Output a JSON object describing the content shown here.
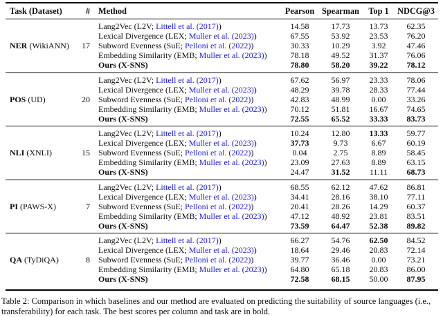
{
  "table": {
    "headers": {
      "task": "Task (Dataset)",
      "count": "#",
      "method": "Method",
      "metrics": [
        "Pearson",
        "Spearman",
        "Top 1",
        "NDCG@3"
      ]
    },
    "groups": [
      {
        "task_abbr": "NER",
        "task_dataset": "(WikiANN)",
        "count": "17",
        "rows": [
          {
            "method_prefix": "Lang2Vec (L2V; ",
            "citation": "Littell et al. (2017)",
            "method_suffix": ")",
            "bold_method": false,
            "values": [
              "14.58",
              "17.73",
              "13.73",
              "62.35"
            ],
            "bold": [
              false,
              false,
              false,
              false
            ]
          },
          {
            "method_prefix": "Lexical Divergence (LEX; ",
            "citation": "Muller et al. (2023)",
            "method_suffix": ")",
            "bold_method": false,
            "values": [
              "67.55",
              "53.92",
              "23.53",
              "76.20"
            ],
            "bold": [
              false,
              false,
              false,
              false
            ]
          },
          {
            "method_prefix": "Subword Evenness (SuE; ",
            "citation": "Pelloni et al. (2022)",
            "method_suffix": ")",
            "bold_method": false,
            "values": [
              "30.33",
              "10.29",
              "3.92",
              "47.46"
            ],
            "bold": [
              false,
              false,
              false,
              false
            ]
          },
          {
            "method_prefix": "Embedding Similarity (EMB; ",
            "citation": "Muller et al. (2023)",
            "method_suffix": ")",
            "bold_method": false,
            "values": [
              "78.18",
              "49.52",
              "31.37",
              "76.06"
            ],
            "bold": [
              false,
              false,
              false,
              false
            ]
          },
          {
            "method_prefix": "Ours (X-SNS)",
            "citation": "",
            "method_suffix": "",
            "bold_method": true,
            "values": [
              "78.80",
              "58.20",
              "39.22",
              "78.12"
            ],
            "bold": [
              true,
              true,
              true,
              true
            ]
          }
        ]
      },
      {
        "task_abbr": "POS",
        "task_dataset": "(UD)",
        "count": "20",
        "rows": [
          {
            "method_prefix": "Lang2Vec (L2V; ",
            "citation": "Littell et al. (2017)",
            "method_suffix": ")",
            "bold_method": false,
            "values": [
              "67.62",
              "56.97",
              "23.33",
              "78.06"
            ],
            "bold": [
              false,
              false,
              false,
              false
            ]
          },
          {
            "method_prefix": "Lexical Divergence (LEX; ",
            "citation": "Muller et al. (2023)",
            "method_suffix": ")",
            "bold_method": false,
            "values": [
              "48.29",
              "39.78",
              "28.33",
              "77.44"
            ],
            "bold": [
              false,
              false,
              false,
              false
            ]
          },
          {
            "method_prefix": "Subword Evenness (SuE; ",
            "citation": "Pelloni et al. (2022)",
            "method_suffix": ")",
            "bold_method": false,
            "values": [
              "42.83",
              "48.99",
              "0.00",
              "33.26"
            ],
            "bold": [
              false,
              false,
              false,
              false
            ]
          },
          {
            "method_prefix": "Embedding Similarity (EMB; ",
            "citation": "Muller et al. (2023)",
            "method_suffix": ")",
            "bold_method": false,
            "values": [
              "70.12",
              "51.81",
              "16.67",
              "74.65"
            ],
            "bold": [
              false,
              false,
              false,
              false
            ]
          },
          {
            "method_prefix": "Ours (X-SNS)",
            "citation": "",
            "method_suffix": "",
            "bold_method": true,
            "values": [
              "72.55",
              "65.52",
              "33.33",
              "83.73"
            ],
            "bold": [
              true,
              true,
              true,
              true
            ]
          }
        ]
      },
      {
        "task_abbr": "NLI",
        "task_dataset": "(XNLI)",
        "count": "15",
        "rows": [
          {
            "method_prefix": "Lang2Vec (L2V; ",
            "citation": "Littell et al. (2017)",
            "method_suffix": ")",
            "bold_method": false,
            "values": [
              "10.24",
              "12.80",
              "13.33",
              "59.77"
            ],
            "bold": [
              false,
              false,
              true,
              false
            ]
          },
          {
            "method_prefix": "Lexical Divergence (LEX; ",
            "citation": "Muller et al. (2023)",
            "method_suffix": ")",
            "bold_method": false,
            "values": [
              "37.73",
              "9.73",
              "6.67",
              "60.19"
            ],
            "bold": [
              true,
              false,
              false,
              false
            ]
          },
          {
            "method_prefix": "Subword Evenness (SuE; ",
            "citation": "Pelloni et al. (2022)",
            "method_suffix": ")",
            "bold_method": false,
            "values": [
              "0.04",
              "2.75",
              "8.89",
              "58.45"
            ],
            "bold": [
              false,
              false,
              false,
              false
            ]
          },
          {
            "method_prefix": "Embedding Similarity (EMB; ",
            "citation": "Muller et al. (2023)",
            "method_suffix": ")",
            "bold_method": false,
            "values": [
              "23.09",
              "27.63",
              "8.89",
              "63.15"
            ],
            "bold": [
              false,
              false,
              false,
              false
            ]
          },
          {
            "method_prefix": "Ours (X-SNS)",
            "citation": "",
            "method_suffix": "",
            "bold_method": true,
            "values": [
              "24.47",
              "31.52",
              "11.11",
              "68.73"
            ],
            "bold": [
              false,
              true,
              false,
              true
            ]
          }
        ]
      },
      {
        "task_abbr": "PI",
        "task_dataset": "(PAWS-X)",
        "count": "7",
        "rows": [
          {
            "method_prefix": "Lang2Vec (L2V; ",
            "citation": "Littell et al. (2017)",
            "method_suffix": ")",
            "bold_method": false,
            "values": [
              "68.55",
              "62.12",
              "47.62",
              "86.81"
            ],
            "bold": [
              false,
              false,
              false,
              false
            ]
          },
          {
            "method_prefix": "Lexical Divergence (LEX; ",
            "citation": "Muller et al. (2023)",
            "method_suffix": ")",
            "bold_method": false,
            "values": [
              "34.41",
              "28.16",
              "38.10",
              "77.11"
            ],
            "bold": [
              false,
              false,
              false,
              false
            ]
          },
          {
            "method_prefix": "Subword Evenness (SuE; ",
            "citation": "Pelloni et al. (2022)",
            "method_suffix": ")",
            "bold_method": false,
            "values": [
              "20.41",
              "28.26",
              "14.29",
              "60.37"
            ],
            "bold": [
              false,
              false,
              false,
              false
            ]
          },
          {
            "method_prefix": "Embedding Similarity (EMB; ",
            "citation": "Muller et al. (2023)",
            "method_suffix": ")",
            "bold_method": false,
            "values": [
              "47.12",
              "48.92",
              "23.81",
              "83.51"
            ],
            "bold": [
              false,
              false,
              false,
              false
            ]
          },
          {
            "method_prefix": "Ours (X-SNS)",
            "citation": "",
            "method_suffix": "",
            "bold_method": true,
            "values": [
              "73.59",
              "64.47",
              "52.38",
              "89.82"
            ],
            "bold": [
              true,
              true,
              true,
              true
            ]
          }
        ]
      },
      {
        "task_abbr": "QA",
        "task_dataset": "(TyDiQA)",
        "count": "8",
        "rows": [
          {
            "method_prefix": "Lang2Vec (L2V; ",
            "citation": "Littell et al. (2017)",
            "method_suffix": ")",
            "bold_method": false,
            "values": [
              "66.27",
              "54.76",
              "62.50",
              "84.52"
            ],
            "bold": [
              false,
              false,
              true,
              false
            ]
          },
          {
            "method_prefix": "Lexical Divergence (LEX; ",
            "citation": "Muller et al. (2023)",
            "method_suffix": ")",
            "bold_method": false,
            "values": [
              "18.64",
              "29.46",
              "20.83",
              "72.14"
            ],
            "bold": [
              false,
              false,
              false,
              false
            ]
          },
          {
            "method_prefix": "Subword Evenness (SuE; ",
            "citation": "Pelloni et al. (2022)",
            "method_suffix": ")",
            "bold_method": false,
            "values": [
              "39.77",
              "36.46",
              "0.00",
              "73.21"
            ],
            "bold": [
              false,
              false,
              false,
              false
            ]
          },
          {
            "method_prefix": "Embedding Similarity (EMB; ",
            "citation": "Muller et al. (2023)",
            "method_suffix": ")",
            "bold_method": false,
            "values": [
              "64.80",
              "65.18",
              "20.83",
              "86.00"
            ],
            "bold": [
              false,
              false,
              false,
              false
            ]
          },
          {
            "method_prefix": "Ours (X-SNS)",
            "citation": "",
            "method_suffix": "",
            "bold_method": true,
            "values": [
              "72.58",
              "68.15",
              "50.00",
              "87.95"
            ],
            "bold": [
              true,
              true,
              false,
              true
            ]
          }
        ]
      }
    ]
  },
  "caption": "Table 2: Comparison in which baselines and our method are evaluated on predicting the suitability of source languages (i.e., transferability) for each task. The best scores per column and task are in bold.",
  "colors": {
    "citation_blue": "#2222CC",
    "text": "#0d0d0d",
    "background": "#ffffff"
  }
}
